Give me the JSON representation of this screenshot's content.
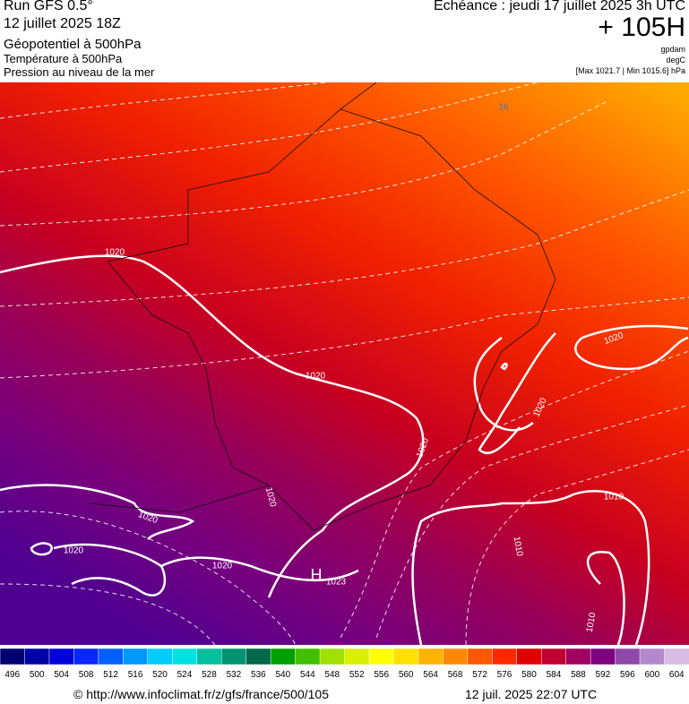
{
  "header": {
    "run": "Run GFS 0.5°",
    "run_date": "12 juillet 2025 18Z",
    "field1": "Géopotentiel à 500hPa",
    "field2": "Température à 500hPa",
    "field3": "Pression au niveau de la mer",
    "valid": "Echéance : jeudi 17 juillet 2025 3h UTC",
    "lead": "+ 105H",
    "unit1": "gpdam",
    "unit2": "degC",
    "unit3": "[Max 1021.7 | Min 1015.6] hPa"
  },
  "map": {
    "contour_labels": [
      "1020",
      "1020",
      "1020",
      "1020",
      "1020",
      "1020",
      "1020",
      "1020",
      "1020",
      "1010",
      "1010",
      "1010",
      "H",
      "1023",
      "16"
    ]
  },
  "colorbar": {
    "labels": [
      "496",
      "500",
      "504",
      "508",
      "512",
      "516",
      "520",
      "524",
      "528",
      "532",
      "536",
      "540",
      "544",
      "548",
      "552",
      "556",
      "560",
      "564",
      "568",
      "572",
      "576",
      "580",
      "584",
      "588",
      "592",
      "596",
      "600",
      "604"
    ],
    "colors": [
      "#000070",
      "#0000a8",
      "#0000dc",
      "#0828ff",
      "#0060ff",
      "#0098ff",
      "#00ccff",
      "#00e0e0",
      "#00c0a0",
      "#009470",
      "#006848",
      "#00a000",
      "#40c000",
      "#a0e000",
      "#d8f000",
      "#ffff00",
      "#ffe000",
      "#ffb400",
      "#ff8800",
      "#ff5800",
      "#ff2800",
      "#e00000",
      "#c00030",
      "#a00060",
      "#800080",
      "#9048a8",
      "#b488cc",
      "#d8bce4"
    ]
  },
  "footer": {
    "url": "© http://www.infoclimat.fr/z/gfs/france/500/105",
    "stamp": "12 juil. 2025 22:07 UTC"
  }
}
